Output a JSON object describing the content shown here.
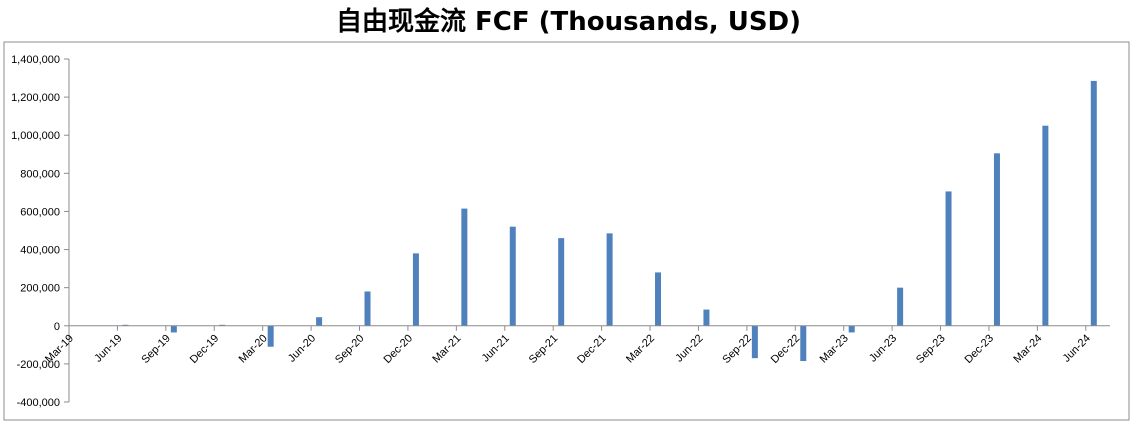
{
  "chart_data": {
    "type": "bar",
    "title": "自由现金流 FCF (Thousands, USD)",
    "xlabel": "",
    "ylabel": "",
    "ylim": [
      -400000,
      1400000
    ],
    "yticks": [
      1400000,
      1200000,
      1000000,
      800000,
      600000,
      400000,
      200000,
      0,
      -200000,
      -400000
    ],
    "ytick_labels": [
      "1,400,000",
      "1,200,000",
      "1,000,000",
      "800,000",
      "600,000",
      "400,000",
      "200,000",
      "0",
      "-200,000",
      "-400,000"
    ],
    "categories": [
      "Mar-19",
      "Jun-19",
      "Sep-19",
      "Dec-19",
      "Mar-20",
      "Jun-20",
      "Sep-20",
      "Dec-20",
      "Mar-21",
      "Jun-21",
      "Sep-21",
      "Dec-21",
      "Mar-22",
      "Jun-22",
      "Sep-22",
      "Dec-22",
      "Mar-23",
      "Jun-23",
      "Sep-23",
      "Dec-23",
      "Mar-24",
      "Jun-24"
    ],
    "values": [
      0,
      5000,
      -35000,
      5000,
      -110000,
      45000,
      180000,
      380000,
      615000,
      520000,
      460000,
      485000,
      280000,
      85000,
      -170000,
      -185000,
      -35000,
      200000,
      705000,
      905000,
      1050000,
      1285000
    ],
    "grid": false,
    "bar_color": "#4F81BD"
  }
}
